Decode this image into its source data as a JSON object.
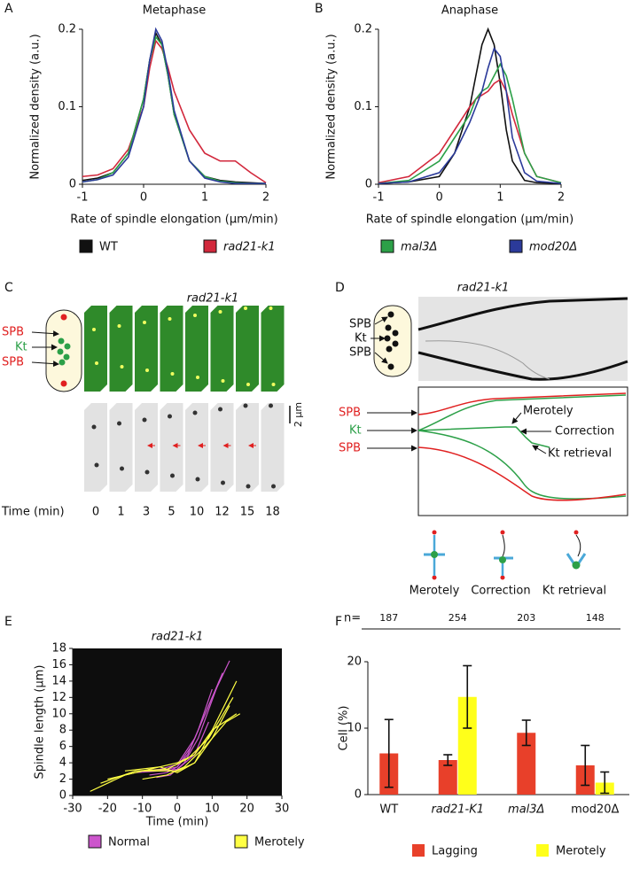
{
  "chart_data": [
    {
      "type": "line",
      "label": "A",
      "title": "Metaphase",
      "xlabel": "Rate of spindle elongation (μm/min)",
      "ylabel": "Normalized density (a.u.)",
      "x": [
        -1,
        -0.75,
        -0.5,
        -0.25,
        0,
        0.1,
        0.2,
        0.3,
        0.4,
        0.5,
        0.75,
        1,
        1.25,
        1.5,
        1.75,
        2
      ],
      "series": [
        {
          "color": "#111111",
          "values": [
            0.005,
            0.008,
            0.015,
            0.04,
            0.11,
            0.16,
            0.195,
            0.18,
            0.14,
            0.09,
            0.03,
            0.01,
            0.005,
            0.003,
            0.002,
            0.001
          ]
        },
        {
          "color": "#d2283c",
          "values": [
            0.01,
            0.012,
            0.02,
            0.045,
            0.1,
            0.15,
            0.185,
            0.175,
            0.15,
            0.12,
            0.07,
            0.04,
            0.03,
            0.03,
            0.015,
            0.002
          ]
        },
        {
          "color": "#2ca048",
          "values": [
            0.003,
            0.006,
            0.015,
            0.04,
            0.11,
            0.16,
            0.19,
            0.18,
            0.14,
            0.09,
            0.03,
            0.01,
            0.004,
            0.002,
            0.001,
            0.001
          ]
        },
        {
          "color": "#2b3a9a",
          "values": [
            0.003,
            0.006,
            0.012,
            0.035,
            0.1,
            0.16,
            0.2,
            0.185,
            0.145,
            0.095,
            0.03,
            0.008,
            0.003,
            0.001,
            0.001,
            0.001
          ]
        }
      ],
      "xlim": [
        -1,
        2
      ],
      "xticks": [
        -1,
        0,
        1,
        2
      ],
      "ylim": [
        0,
        0.2
      ],
      "yticks": [
        0,
        0.1,
        0.2
      ]
    },
    {
      "type": "line",
      "label": "B",
      "title": "Anaphase",
      "xlabel": "Rate of spindle elongation (μm/min)",
      "ylabel": "Normalized density (a.u.)",
      "x": [
        -1,
        -0.5,
        0,
        0.25,
        0.5,
        0.6,
        0.7,
        0.8,
        0.9,
        1,
        1.1,
        1.2,
        1.4,
        1.6,
        2
      ],
      "series": [
        {
          "color": "#111111",
          "values": [
            0.001,
            0.003,
            0.01,
            0.04,
            0.1,
            0.14,
            0.18,
            0.2,
            0.18,
            0.13,
            0.07,
            0.03,
            0.005,
            0.002,
            0.001
          ]
        },
        {
          "color": "#d2283c",
          "values": [
            0.002,
            0.01,
            0.04,
            0.07,
            0.1,
            0.11,
            0.115,
            0.12,
            0.13,
            0.135,
            0.12,
            0.09,
            0.04,
            0.01,
            0.002
          ]
        },
        {
          "color": "#2ca048",
          "values": [
            0.001,
            0.005,
            0.03,
            0.06,
            0.09,
            0.11,
            0.12,
            0.125,
            0.14,
            0.155,
            0.14,
            0.11,
            0.04,
            0.01,
            0.002
          ]
        },
        {
          "color": "#2b3a9a",
          "values": [
            0.001,
            0.003,
            0.015,
            0.04,
            0.08,
            0.1,
            0.12,
            0.15,
            0.175,
            0.165,
            0.12,
            0.06,
            0.015,
            0.004,
            0.001
          ]
        }
      ],
      "xlim": [
        -1,
        2
      ],
      "xticks": [
        -1,
        0,
        1,
        2
      ],
      "ylim": [
        0,
        0.2
      ],
      "yticks": [
        0,
        0.1,
        0.2
      ]
    },
    {
      "type": "line",
      "label": "E",
      "title": "rad21-k1",
      "xlabel": "Time (min)",
      "ylabel": "Spindle length (μm)",
      "background": "#0d0d0d",
      "series": [
        {
          "color": "#cc55cc",
          "x": [
            -10,
            -5,
            0,
            5,
            10,
            15
          ],
          "values": [
            3,
            3.2,
            3.8,
            7,
            12,
            16.5
          ]
        },
        {
          "color": "#cc55cc",
          "x": [
            -8,
            -3,
            0,
            4,
            8,
            13
          ],
          "values": [
            2.5,
            2.8,
            3.5,
            6,
            10,
            15
          ]
        },
        {
          "color": "#cc55cc",
          "x": [
            -5,
            0,
            3,
            6,
            10
          ],
          "values": [
            3,
            3.5,
            5,
            8,
            13
          ]
        },
        {
          "color": "#cc55cc",
          "x": [
            -12,
            -5,
            0,
            5,
            9
          ],
          "values": [
            2.8,
            3,
            3.2,
            5,
            9
          ]
        },
        {
          "color": "#cc55cc",
          "x": [
            -6,
            -2,
            2,
            6,
            12
          ],
          "values": [
            2.2,
            2.5,
            4,
            7,
            14
          ]
        },
        {
          "color": "#ffff44",
          "x": [
            -25,
            -15,
            -5,
            0,
            5,
            10,
            17
          ],
          "values": [
            0.5,
            2.5,
            3.5,
            4,
            5,
            8,
            10
          ]
        },
        {
          "color": "#ffff44",
          "x": [
            -20,
            -10,
            0,
            5,
            10,
            15
          ],
          "values": [
            2,
            3,
            3,
            4,
            7,
            11
          ]
        },
        {
          "color": "#ffff44",
          "x": [
            -15,
            -5,
            0,
            5,
            10,
            17
          ],
          "values": [
            3,
            3.5,
            2.8,
            4,
            8,
            14
          ]
        },
        {
          "color": "#ffff44",
          "x": [
            -10,
            -3,
            2,
            8,
            14,
            18
          ],
          "values": [
            2,
            2.5,
            3.5,
            6,
            9,
            10
          ]
        },
        {
          "color": "#ffff44",
          "x": [
            -22,
            -12,
            -3,
            3,
            9,
            16
          ],
          "values": [
            1.5,
            3,
            3.2,
            4.5,
            7,
            12
          ]
        }
      ],
      "legend": [
        {
          "name": "Normal",
          "color": "#cc55cc"
        },
        {
          "name": "Merotely",
          "color": "#ffff44"
        }
      ],
      "xlim": [
        -30,
        30
      ],
      "xticks": [
        -30,
        -20,
        -10,
        0,
        10,
        20,
        30
      ],
      "ylim": [
        0,
        18
      ],
      "yticks": [
        0,
        2,
        4,
        6,
        8,
        10,
        12,
        14,
        16,
        18
      ]
    },
    {
      "type": "bar",
      "label": "F",
      "ylabel": "Cell (%)",
      "n_label": "n=",
      "n_values": [
        187,
        254,
        203,
        148
      ],
      "categories": [
        "WT",
        "rad21-K1",
        "mal3Δ",
        "mod20Δ"
      ],
      "series": [
        {
          "name": "Lagging",
          "color": "#e8402a",
          "values": [
            6.2,
            5.2,
            9.3,
            4.4
          ],
          "errors": [
            5.1,
            0.8,
            1.9,
            3
          ]
        },
        {
          "name": "Merotely",
          "color": "#ffff1a",
          "values": [
            null,
            14.7,
            null,
            1.8
          ],
          "errors": [
            null,
            4.7,
            null,
            1.6
          ]
        }
      ],
      "ylim": [
        0,
        20
      ],
      "yticks": [
        0,
        10,
        20
      ]
    }
  ],
  "legend": [
    {
      "name": "WT",
      "color": "#111111"
    },
    {
      "name": "rad21-k1",
      "color": "#d2283c"
    },
    {
      "name": "mal3Δ",
      "color": "#2ca048"
    },
    {
      "name": "mod20Δ",
      "color": "#2b3a9a"
    }
  ],
  "panel_c": {
    "label": "C",
    "title": "rad21-k1",
    "spb_top": "SPB",
    "kt": "Kt",
    "spb_bottom": "SPB",
    "scale": "2 μm",
    "time_label": "Time (min)",
    "times": [
      0,
      1,
      3,
      5,
      10,
      12,
      15,
      18
    ]
  },
  "panel_d": {
    "label": "D",
    "title": "rad21-k1",
    "kymo_labels": [
      "SPB",
      "Kt",
      "SPB"
    ],
    "diagram_labels": [
      "SPB",
      "Kt",
      "SPB"
    ],
    "annotations": [
      "Merotely",
      "Correction",
      "Kt retrieval"
    ],
    "icon_labels": [
      "Merotely",
      "Correction",
      "Kt retrieval"
    ]
  }
}
